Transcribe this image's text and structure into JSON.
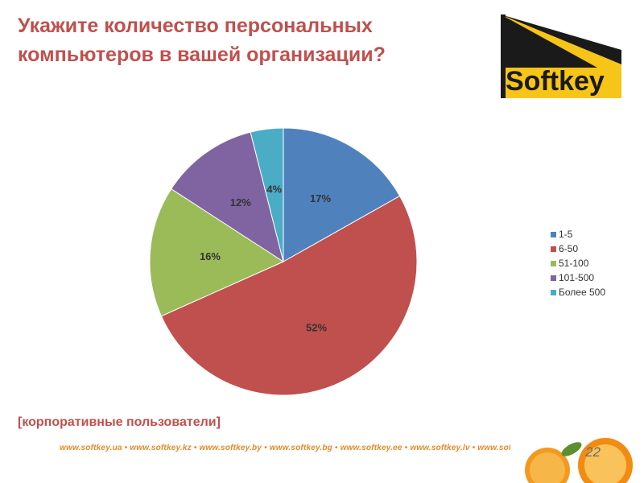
{
  "title": "Укажите количество персональных компьютеров в вашей организации?",
  "logo_text": "Softkey",
  "subtitle": "[корпоративные пользователи]",
  "footer_links": "www.softkey.ua • www.softkey.kz • www.softkey.by • www.softkey.bg • www.softkey.ee • www.softkey.lv • www.softkey.lt • www.softkey.pl • rus.softkey.co.il • rus.softkey.md",
  "page_number": "22",
  "chart_data": {
    "type": "pie",
    "categories": [
      "1-5",
      "6-50",
      "51-100",
      "101-500",
      "Более 500"
    ],
    "values": [
      17,
      52,
      16,
      12,
      4
    ],
    "labels": [
      "17%",
      "52%",
      "16%",
      "12%",
      "4%"
    ],
    "colors": [
      "#4f81bd",
      "#c0504d",
      "#9bbb59",
      "#8064a2",
      "#4bacc6"
    ],
    "legend_position": "right"
  }
}
